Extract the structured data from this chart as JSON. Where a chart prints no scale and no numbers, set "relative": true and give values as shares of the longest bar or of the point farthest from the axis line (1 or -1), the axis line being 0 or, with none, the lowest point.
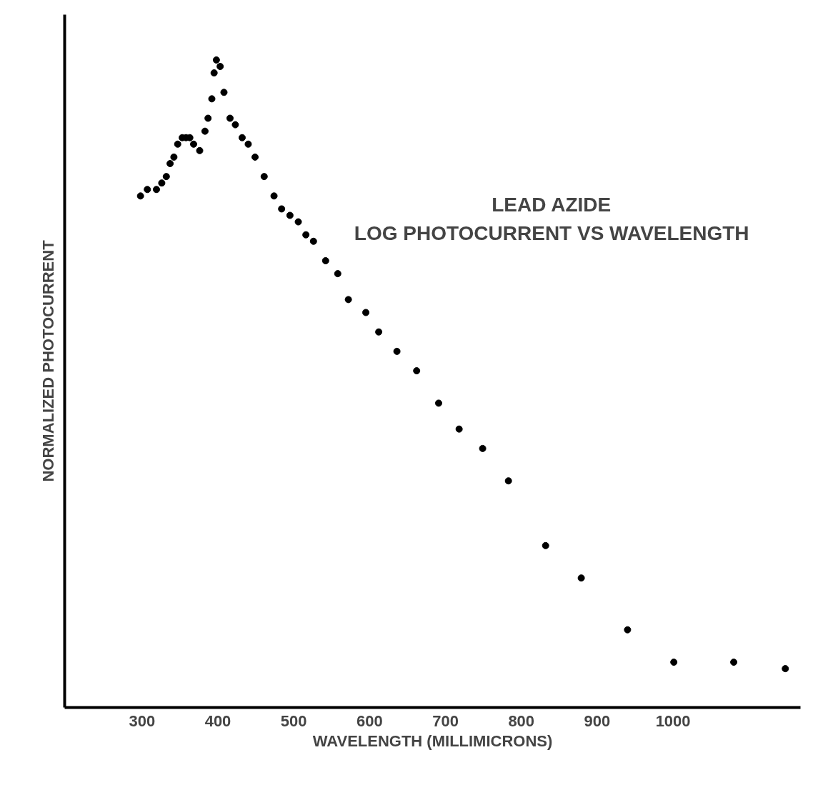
{
  "chart_data": {
    "type": "scatter",
    "relative": true,
    "xlabel": "WAVELENGTH (MILLIMICRONS)",
    "ylabel": "NORMALIZED PHOTOCURRENT",
    "annotations": [
      "LEAD AZIDE",
      "LOG PHOTOCURRENT VS WAVELENGTH"
    ],
    "xlim": [
      198,
      1168
    ],
    "xticks": [
      300,
      400,
      500,
      600,
      700,
      800,
      900,
      1000
    ],
    "tick_labels": "x",
    "grid": false,
    "marker": "circle",
    "x": [
      298,
      307,
      319,
      326,
      332,
      337,
      342,
      347,
      353,
      358,
      363,
      368,
      376,
      383,
      387,
      392,
      395,
      398,
      403,
      408,
      416,
      423,
      432,
      440,
      449,
      461,
      474,
      484,
      495,
      506,
      516,
      526,
      542,
      558,
      572,
      595,
      612,
      636,
      662,
      691,
      718,
      749,
      783,
      832,
      879,
      940,
      1001,
      1080,
      1148
    ],
    "series": [
      {
        "color": "#000000",
        "values": [
          0.79,
          0.8,
          0.8,
          0.81,
          0.82,
          0.84,
          0.85,
          0.87,
          0.88,
          0.88,
          0.88,
          0.87,
          0.86,
          0.89,
          0.91,
          0.94,
          0.98,
          1.0,
          0.99,
          0.95,
          0.91,
          0.9,
          0.88,
          0.87,
          0.85,
          0.82,
          0.79,
          0.77,
          0.76,
          0.75,
          0.73,
          0.72,
          0.69,
          0.67,
          0.63,
          0.61,
          0.58,
          0.55,
          0.52,
          0.47,
          0.43,
          0.4,
          0.35,
          0.25,
          0.2,
          0.12,
          0.07,
          0.07,
          0.06
        ]
      }
    ]
  }
}
